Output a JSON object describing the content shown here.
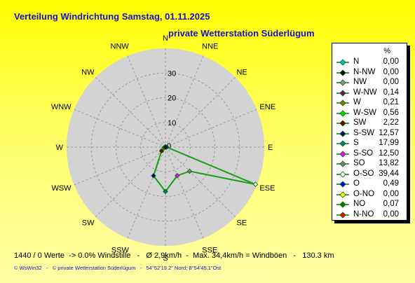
{
  "title": "Verteilung Windrichtung   Samstag, 01.11.2025",
  "subtitle": "private Wetterstation Süderlügum",
  "legend": {
    "unit": "%"
  },
  "chart_data": {
    "type": "radar",
    "title": "Verteilung Windrichtung   Samstag, 01.11.2025",
    "rlim": [
      0,
      40
    ],
    "ring_labels": [
      "10",
      "20",
      "30"
    ],
    "center_label": "0",
    "directions": [
      "N",
      "NNE",
      "NE",
      "ENE",
      "E",
      "ESE",
      "SE",
      "SSE",
      "S",
      "SSW",
      "SW",
      "WSW",
      "W",
      "WNW",
      "NW",
      "NNW"
    ],
    "grid": true,
    "legend_position": "right",
    "series": [
      {
        "label": "N",
        "value": 0.0,
        "color": "#00c0c0",
        "marker": "diamond"
      },
      {
        "label": "N-NW",
        "value": 0.0,
        "color": "#000000",
        "marker": "diamond"
      },
      {
        "label": "NW",
        "value": 0.0,
        "color": "#909090",
        "marker": "diamond"
      },
      {
        "label": "W-NW",
        "value": 0.14,
        "color": "#800080",
        "marker": "diamond"
      },
      {
        "label": "W",
        "value": 0.21,
        "color": "#808000",
        "marker": "diamond"
      },
      {
        "label": "W-SW",
        "value": 0.56,
        "color": "#00e000",
        "marker": "diamond"
      },
      {
        "label": "SW",
        "value": 2.22,
        "color": "#800000",
        "marker": "diamond"
      },
      {
        "label": "S-SW",
        "value": 12.57,
        "color": "#000080",
        "marker": "diamond"
      },
      {
        "label": "S",
        "value": 17.99,
        "color": "#008080",
        "marker": "diamond"
      },
      {
        "label": "S-SO",
        "value": 12.5,
        "color": "#ff00ff",
        "marker": "diamond"
      },
      {
        "label": "SO",
        "value": 13.82,
        "color": "#808080",
        "marker": "diamond"
      },
      {
        "label": "O-SO",
        "value": 39.44,
        "color": "#ffffff",
        "marker": "diamond"
      },
      {
        "label": "O",
        "value": 0.49,
        "color": "#0000ff",
        "marker": "diamond"
      },
      {
        "label": "O-NO",
        "value": 0.0,
        "color": "#ffff00",
        "marker": "diamond"
      },
      {
        "label": "NO",
        "value": 0.07,
        "color": "#008000",
        "marker": "diamond"
      },
      {
        "label": "N-NO",
        "value": 0.0,
        "color": "#ff0000",
        "marker": "diamond"
      }
    ],
    "line_color": "#18a018",
    "disc_color": "#d3d3d3",
    "grid_color": "#9a9a9a",
    "axis_label_color": "#000000",
    "plot_order": [
      "N",
      "N-NO",
      "NO",
      "O-NO",
      "O",
      "O-SO",
      "SO",
      "S-SO",
      "S",
      "S-SW",
      "SW",
      "W-SW",
      "W",
      "W-NW",
      "NW",
      "N-NW"
    ]
  },
  "footer": {
    "stats": "1440 / 0 Werte  -> 0.0% Windstille   -   Ø 2,9km/h  -  Max. 34,4km/h = Windböen   -   130.3 km",
    "credit": "© WsWin32   -   © private Wetterstation Süderlügum   -   54°52'19.2\" Nord; 8°54'45.1\"Ost"
  },
  "colors": {
    "title": "#1a10c8",
    "background_top": "#fffe00",
    "background_bottom": "#fffea6"
  }
}
